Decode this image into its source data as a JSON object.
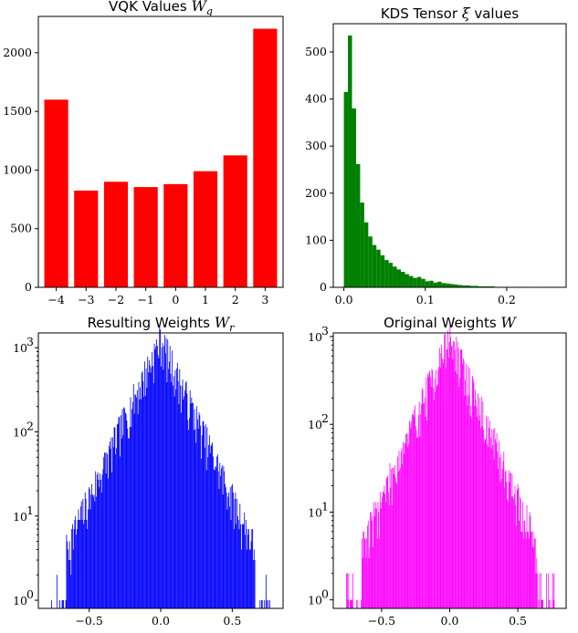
{
  "chart_data": [
    {
      "type": "bar",
      "title_text": "VQK Values ",
      "title_math": "W",
      "title_sub": "q",
      "title_suffix": "",
      "color": "#ff0000",
      "x": [
        -4,
        -3,
        -2,
        -1,
        0,
        1,
        2,
        3
      ],
      "x_tick_labels": [
        "−4",
        "−3",
        "−2",
        "−1",
        "0",
        "1",
        "2",
        "3"
      ],
      "values": [
        1600,
        825,
        900,
        855,
        880,
        990,
        1125,
        2205
      ],
      "xlim": [
        -4.6,
        3.6
      ],
      "ylim": [
        0,
        2310
      ],
      "y_ticks": [
        0,
        500,
        1000,
        1500,
        2000
      ],
      "y_tick_labels": [
        "0",
        "500",
        "1000",
        "1500",
        "2000"
      ],
      "yscale": "linear"
    },
    {
      "type": "bar",
      "title_text": "KDS Tensor ",
      "title_math": "ξ",
      "title_sub": "",
      "title_suffix": " values",
      "color": "#008000",
      "hist_bins": {
        "start": 0.0,
        "width": 0.005,
        "counts": [
          415,
          535,
          380,
          262,
          180,
          138,
          108,
          90,
          80,
          68,
          58,
          52,
          44,
          38,
          33,
          28,
          24,
          20,
          22,
          18,
          13,
          14,
          10,
          12,
          9,
          8,
          7,
          6,
          5,
          4,
          4,
          3,
          3,
          2,
          2,
          2,
          2,
          1,
          1,
          1,
          1,
          1,
          1,
          1,
          1,
          0,
          0,
          0,
          0,
          1,
          1,
          1
        ]
      },
      "x_ticks": [
        0,
        0.1,
        0.2
      ],
      "x_tick_labels": [
        "0.0",
        "0.1",
        "0.2"
      ],
      "xlim": [
        -0.013,
        0.273
      ],
      "ylim": [
        0,
        560
      ],
      "y_ticks": [
        0,
        100,
        200,
        300,
        400,
        500
      ],
      "y_tick_labels": [
        "0",
        "100",
        "200",
        "300",
        "400",
        "500"
      ],
      "yscale": "linear"
    },
    {
      "type": "bar",
      "title_text": "Resulting Weights ",
      "title_math": "W",
      "title_sub": "r",
      "title_suffix": "",
      "color": "#0000ff",
      "hist": {
        "peak": 1250,
        "center": 0.0,
        "decay": 0.115,
        "range": [
          -0.78,
          0.78
        ],
        "n_bins": 300,
        "seed": 7,
        "sparse": 0.35
      },
      "x_ticks": [
        -0.5,
        0,
        0.5
      ],
      "x_tick_labels": [
        "−0.5",
        "0.0",
        "0.5"
      ],
      "xlim": [
        -0.855,
        0.855
      ],
      "ylim": [
        0.8,
        1500
      ],
      "y_ticks": [
        1,
        10,
        100,
        1000
      ],
      "y_tick_labels": [
        "10",
        "10",
        "10",
        "10"
      ],
      "y_tick_exp": [
        "0",
        "1",
        "2",
        "3"
      ],
      "yscale": "log"
    },
    {
      "type": "bar",
      "title_text": "Original Weights ",
      "title_math": "W",
      "title_sub": "",
      "title_suffix": "",
      "color": "#ff00ff",
      "hist": {
        "peak": 1000,
        "center": 0.0,
        "decay": 0.117,
        "range": [
          -0.76,
          0.78
        ],
        "n_bins": 300,
        "seed": 19,
        "sparse": 0.5
      },
      "x_ticks": [
        -0.5,
        0,
        0.5
      ],
      "x_tick_labels": [
        "−0.5",
        "0.0",
        "0.5"
      ],
      "xlim": [
        -0.855,
        0.855
      ],
      "ylim": [
        0.8,
        1100
      ],
      "y_ticks": [
        1,
        10,
        100,
        1000
      ],
      "y_tick_labels": [
        "10",
        "10",
        "10",
        "10"
      ],
      "y_tick_exp": [
        "0",
        "1",
        "2",
        "3"
      ],
      "yscale": "log"
    }
  ]
}
